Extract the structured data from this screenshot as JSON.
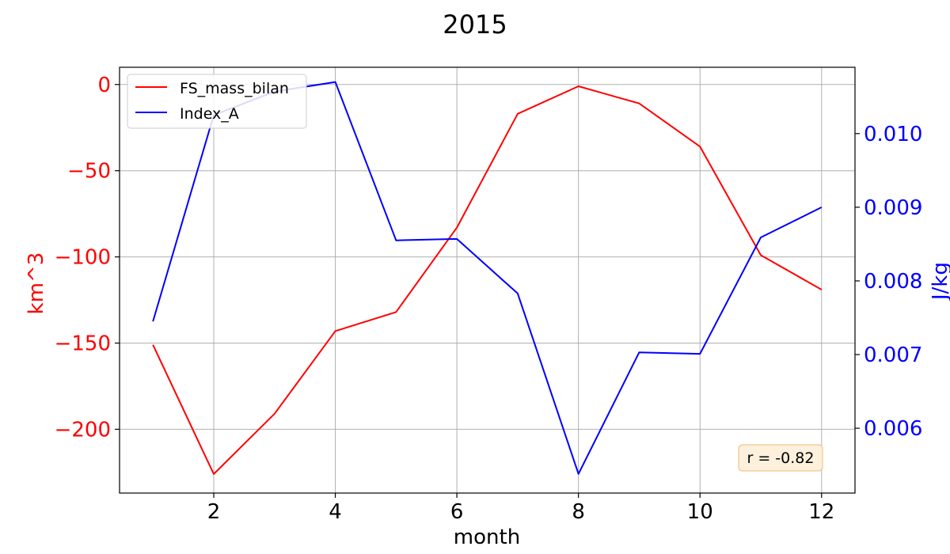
{
  "chart_data": {
    "type": "line",
    "title": "2015",
    "xlabel": "month",
    "ylabel_left": "km^3",
    "ylabel_right": "J/kg",
    "x": [
      1,
      2,
      3,
      4,
      5,
      6,
      7,
      8,
      9,
      10,
      11,
      12
    ],
    "xlim": [
      0.45,
      12.55
    ],
    "xticks": [
      2,
      4,
      6,
      8,
      10,
      12
    ],
    "ylim_left": [
      -237,
      10
    ],
    "yticks_left": [
      0,
      -50,
      -100,
      -150,
      -200
    ],
    "ytick_labels_left": [
      "0",
      "−50",
      "−100",
      "−150",
      "−200"
    ],
    "ylim_right": [
      0.00512,
      0.0109
    ],
    "yticks_right": [
      0.006,
      0.007,
      0.008,
      0.009,
      0.01
    ],
    "ytick_labels_right": [
      "0.006",
      "0.007",
      "0.008",
      "0.009",
      "0.010"
    ],
    "grid": true,
    "legend_position": "top-left",
    "series": [
      {
        "name": "FS_mass_bilan",
        "axis": "left",
        "color": "#ff0000",
        "values": [
          -151,
          -226,
          -191,
          -143,
          -132,
          -83,
          -17,
          -1,
          -11,
          -36,
          -99,
          -119
        ]
      },
      {
        "name": "Index_A",
        "axis": "right",
        "color": "#0000ff",
        "values": [
          0.00745,
          0.01025,
          0.01057,
          0.0107,
          0.00855,
          0.00857,
          0.00783,
          0.00538,
          0.00703,
          0.00701,
          0.00859,
          0.009
        ]
      }
    ],
    "annotation": {
      "text": "r = -0.82",
      "position": "bottom-right",
      "facecolor": "#fdf0dc",
      "edgecolor": "#f3c68a"
    },
    "colors": {
      "left_axis": "#ff0000",
      "right_axis": "#0000ff",
      "grid": "#b0b0b0"
    }
  }
}
